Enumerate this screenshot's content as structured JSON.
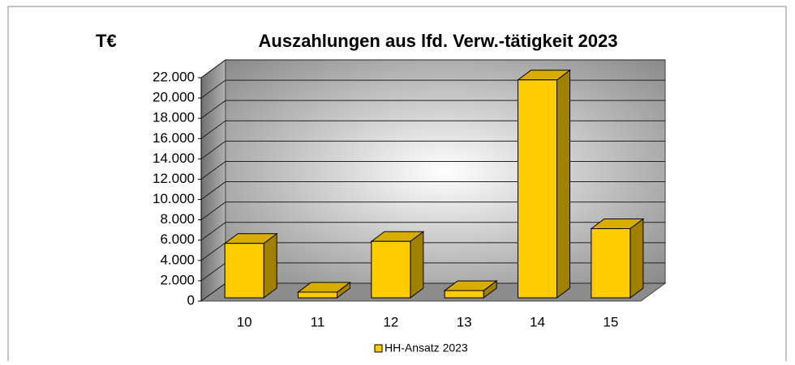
{
  "chart_data": {
    "type": "bar",
    "title": "Auszahlungen aus lfd. Verw.-tätigkeit 2023",
    "y_label": "T€",
    "categories": [
      "10",
      "11",
      "12",
      "13",
      "14",
      "15"
    ],
    "series": [
      {
        "name": "HH-Ansatz 2023",
        "color": "#ffcc00",
        "values": [
          6000,
          1200,
          6200,
          1350,
          22100,
          7450
        ]
      }
    ],
    "ylim": [
      0,
      22000
    ],
    "yticks": [
      0,
      {
        "value": 2000,
        "label": "2.000"
      },
      {
        "value": 4000,
        "label": "4.000"
      },
      {
        "value": 6000,
        "label": "6.000"
      },
      {
        "value": 8000,
        "label": "8.000"
      },
      {
        "value": 10000,
        "label": "10.000"
      },
      {
        "value": 12000,
        "label": "12.000"
      },
      {
        "value": 14000,
        "label": "14.000"
      },
      {
        "value": 16000,
        "label": "16.000"
      },
      {
        "value": 18000,
        "label": "18.000"
      },
      {
        "value": 20000,
        "label": "20.000"
      },
      {
        "value": 22000,
        "label": "22.000"
      }
    ],
    "grid": true,
    "legend": "bottom"
  }
}
